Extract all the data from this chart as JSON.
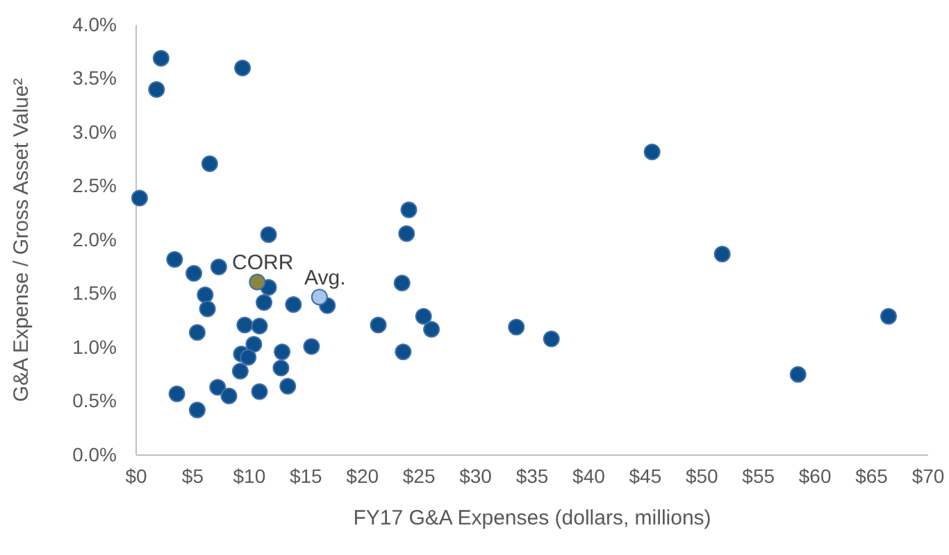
{
  "chart_data": {
    "type": "scatter",
    "xlabel": "FY17 G&A Expenses (dollars, millions)",
    "ylabel": "G&A Expense / Gross Asset Value²",
    "xlim": [
      0,
      70
    ],
    "ylim": [
      0,
      4
    ],
    "xticks": [
      {
        "value": 0,
        "label": "$0"
      },
      {
        "value": 5,
        "label": "$5"
      },
      {
        "value": 10,
        "label": "$10"
      },
      {
        "value": 15,
        "label": "$15"
      },
      {
        "value": 20,
        "label": "$20"
      },
      {
        "value": 25,
        "label": "$25"
      },
      {
        "value": 30,
        "label": "$30"
      },
      {
        "value": 35,
        "label": "$35"
      },
      {
        "value": 40,
        "label": "$40"
      },
      {
        "value": 45,
        "label": "$45"
      },
      {
        "value": 50,
        "label": "$50"
      },
      {
        "value": 55,
        "label": "$55"
      },
      {
        "value": 60,
        "label": "$60"
      },
      {
        "value": 65,
        "label": "$65"
      },
      {
        "value": 70,
        "label": "$70"
      }
    ],
    "yticks": [
      {
        "value": 0,
        "label": "0.0%"
      },
      {
        "value": 0.5,
        "label": "0.5%"
      },
      {
        "value": 1,
        "label": "1.0%"
      },
      {
        "value": 1.5,
        "label": "1.5%"
      },
      {
        "value": 2,
        "label": "2.0%"
      },
      {
        "value": 2.5,
        "label": "2.5%"
      },
      {
        "value": 3,
        "label": "3.0%"
      },
      {
        "value": 3.5,
        "label": "3.5%"
      },
      {
        "value": 4,
        "label": "4.0%"
      }
    ],
    "grid": false,
    "marker": "circle",
    "series": [
      {
        "color": "#0d4f8b",
        "x": [
          2.2,
          1.8,
          9.4,
          6.5,
          0.3,
          11.7,
          3.4,
          5.1,
          7.3,
          11.7,
          16.9,
          6.1,
          6.3,
          11.3,
          13.9,
          21.4,
          9.6,
          10.9,
          5.4,
          10.4,
          9.3,
          9.9,
          12.9,
          15.5,
          9.2,
          12.8,
          3.6,
          5.4,
          7.2,
          8.2,
          10.9,
          13.4,
          24.1,
          23.9,
          23.5,
          25.4,
          26.1,
          23.6,
          33.6,
          36.7,
          45.6,
          51.8,
          58.5,
          66.5
        ],
        "values": [
          3.69,
          3.4,
          3.6,
          2.71,
          2.39,
          2.05,
          1.82,
          1.69,
          1.75,
          1.56,
          1.39,
          1.49,
          1.36,
          1.42,
          1.4,
          1.21,
          1.21,
          1.2,
          1.14,
          1.03,
          0.94,
          0.91,
          0.96,
          1.01,
          0.78,
          0.81,
          0.57,
          0.42,
          0.63,
          0.55,
          0.59,
          0.64,
          2.28,
          2.06,
          1.6,
          1.29,
          1.17,
          0.96,
          1.19,
          1.08,
          2.82,
          1.87,
          0.75,
          1.29
        ]
      },
      {
        "name": "CORR",
        "color": "#8a8640",
        "x": [
          10.7
        ],
        "values": [
          1.61
        ]
      },
      {
        "name": "Avg.",
        "color": "#a9c6ea",
        "x": [
          16.2
        ],
        "values": [
          1.47
        ]
      }
    ]
  }
}
